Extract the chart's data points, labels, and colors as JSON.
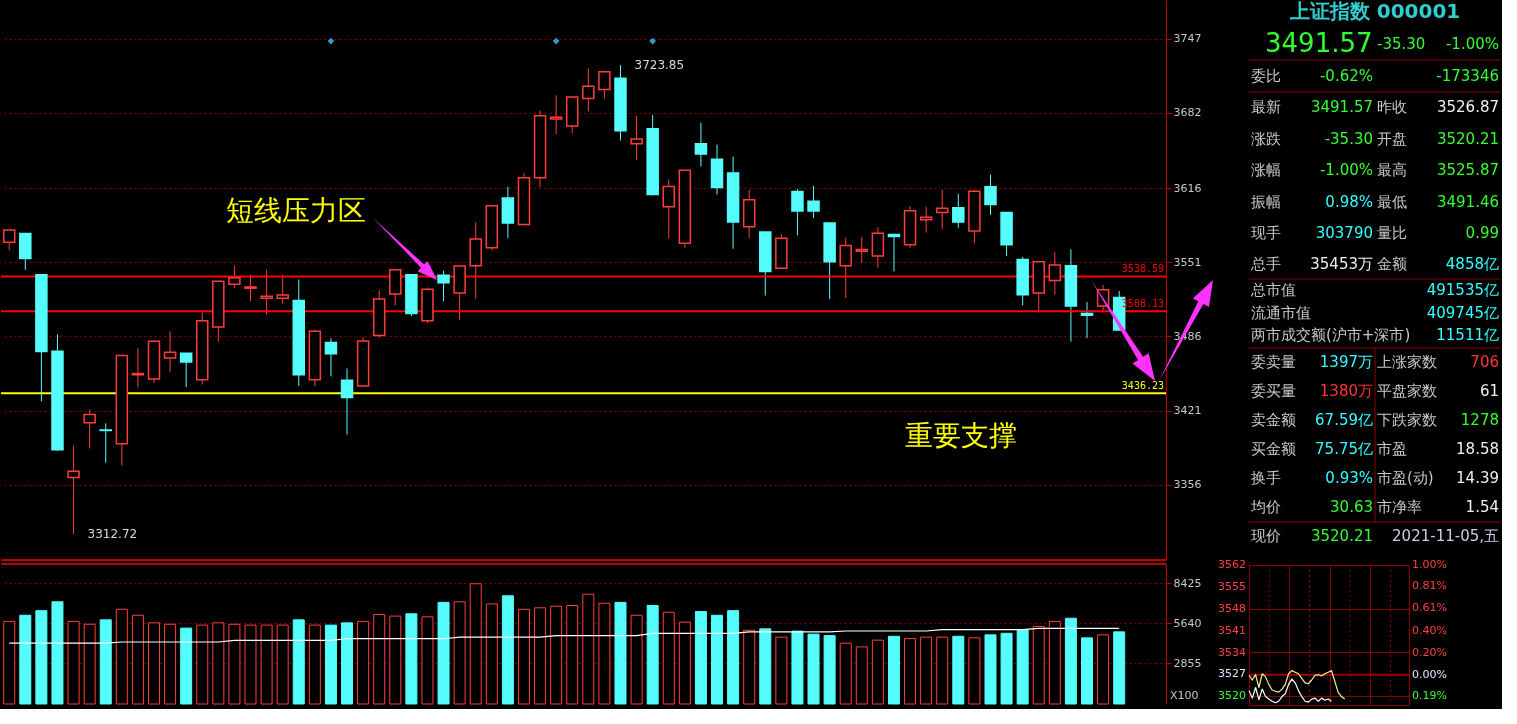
{
  "chart_data": [
    {
      "type": "candlestick",
      "categories": [
        null,
        null,
        null,
        null,
        null,
        null,
        null,
        null,
        null,
        null,
        null,
        null,
        null,
        null,
        null,
        null,
        null,
        null,
        null,
        null,
        null,
        null,
        null,
        null,
        null,
        null,
        null,
        null,
        null,
        null,
        null,
        null,
        null,
        null,
        null,
        null,
        null,
        null,
        null,
        null,
        null,
        null,
        null,
        null,
        null,
        null,
        null,
        null,
        null,
        null,
        null,
        null,
        null,
        null,
        null,
        null,
        null,
        null,
        null,
        null,
        null,
        null,
        null,
        null,
        null,
        null,
        null,
        null,
        null,
        null
      ],
      "ohlc": [
        [
          3568.5,
          3579.3,
          3561.4,
          3579.3
        ],
        [
          3576.2,
          3576.2,
          3544.4,
          3554.4
        ],
        [
          3540.2,
          3540.2,
          3429.1,
          3472.8
        ],
        [
          3473.1,
          3487.8,
          3385.8,
          3386.6
        ],
        [
          3362.3,
          3390.6,
          3312.72,
          3367.9
        ],
        [
          3410.4,
          3421.8,
          3387.8,
          3417.5
        ],
        [
          3404.0,
          3409.9,
          3375.3,
          3403.6
        ],
        [
          3392.0,
          3469.4,
          3373.0,
          3469.4
        ],
        [
          3452.4,
          3475.6,
          3441.6,
          3453.5
        ],
        [
          3448.7,
          3481.8,
          3445.3,
          3481.8
        ],
        [
          3467.1,
          3490.6,
          3454.6,
          3472.2
        ],
        [
          3471.3,
          3471.3,
          3441.6,
          3463.7
        ],
        [
          3448.1,
          3507.0,
          3443.9,
          3499.7
        ],
        [
          3494.3,
          3534.5,
          3481.3,
          3534.5
        ],
        [
          3531.7,
          3548.1,
          3528.3,
          3537.4
        ],
        [
          3528.3,
          3540.2,
          3517.0,
          3529.4
        ],
        [
          3519.5,
          3544.4,
          3504.8,
          3521.2
        ],
        [
          3519.5,
          3540.2,
          3514.7,
          3522.3
        ],
        [
          3517.5,
          3535.9,
          3442.5,
          3452.4
        ],
        [
          3448.1,
          3492.0,
          3442.5,
          3490.6
        ],
        [
          3480.7,
          3484.4,
          3451.0,
          3470.8
        ],
        [
          3447.6,
          3458.0,
          3400.0,
          3432.5
        ],
        [
          3442.5,
          3485.5,
          3442.5,
          3482.1
        ],
        [
          3486.9,
          3526.6,
          3484.9,
          3518.9
        ],
        [
          3523.2,
          3544.4,
          3513.3,
          3544.4
        ],
        [
          3540.2,
          3540.2,
          3503.9,
          3506.2
        ],
        [
          3499.7,
          3528.9,
          3497.7,
          3527.4
        ],
        [
          3539.6,
          3543.6,
          3517.0,
          3533.1
        ],
        [
          3524.0,
          3547.8,
          3500.5,
          3547.8
        ],
        [
          3548.1,
          3586.1,
          3518.9,
          3571.4
        ],
        [
          3563.7,
          3600.5,
          3561.4,
          3600.5
        ],
        [
          3607.3,
          3617.2,
          3572.2,
          3585.5
        ],
        [
          3584.1,
          3629.4,
          3583.3,
          3625.2
        ],
        [
          3625.2,
          3684.1,
          3617.2,
          3679.6
        ],
        [
          3676.7,
          3697.4,
          3663.4,
          3678.2
        ],
        [
          3670.5,
          3696.0,
          3664.3,
          3696.0
        ],
        [
          3694.6,
          3721.0,
          3683.3,
          3705.4
        ],
        [
          3702.5,
          3719.2,
          3694.6,
          3718.1
        ],
        [
          3712.4,
          3723.85,
          3657.8,
          3666.3
        ],
        [
          3654.9,
          3679.6,
          3640.8,
          3659.2
        ],
        [
          3668.2,
          3680.4,
          3609.6,
          3610.5
        ],
        [
          3599.7,
          3623.8,
          3572.2,
          3617.5
        ],
        [
          3567.7,
          3631.7,
          3563.7,
          3631.7
        ],
        [
          3654.9,
          3673.3,
          3635.1,
          3645.9
        ],
        [
          3641.3,
          3654.1,
          3610.5,
          3616.7
        ],
        [
          3629.4,
          3643.6,
          3562.9,
          3586.4
        ],
        [
          3582.1,
          3614.7,
          3572.2,
          3605.9
        ],
        [
          3577.6,
          3577.6,
          3521.8,
          3543.0
        ],
        [
          3545.9,
          3575.6,
          3545.3,
          3572.2
        ],
        [
          3613.0,
          3615.3,
          3574.8,
          3596.0
        ],
        [
          3604.5,
          3618.1,
          3589.8,
          3596.0
        ],
        [
          3585.5,
          3586.1,
          3518.9,
          3551.5
        ],
        [
          3548.1,
          3572.8,
          3519.8,
          3565.7
        ],
        [
          3560.6,
          3573.3,
          3550.7,
          3562.3
        ],
        [
          3556.6,
          3581.8,
          3546.4,
          3576.5
        ],
        [
          3575.3,
          3575.3,
          3543.0,
          3573.6
        ],
        [
          3566.5,
          3600.3,
          3563.7,
          3596.3
        ],
        [
          3588.4,
          3599.7,
          3577.0,
          3590.6
        ],
        [
          3594.6,
          3614.7,
          3579.9,
          3598.3
        ],
        [
          3598.8,
          3611.0,
          3581.3,
          3586.4
        ],
        [
          3578.4,
          3614.7,
          3567.7,
          3613.3
        ],
        [
          3617.2,
          3628.0,
          3592.6,
          3601.7
        ],
        [
          3594.6,
          3594.6,
          3556.6,
          3566.5
        ],
        [
          3553.5,
          3555.8,
          3513.3,
          3522.6
        ],
        [
          3524.0,
          3551.5,
          3507.0,
          3551.5
        ],
        [
          3535.1,
          3560.0,
          3522.6,
          3548.7
        ],
        [
          3548.1,
          3562.3,
          3481.5,
          3512.7
        ],
        [
          3506.2,
          3516.1,
          3484.4,
          3504.5
        ],
        [
          3512.7,
          3531.1,
          3507.0,
          3526.87
        ],
        [
          3520.21,
          3525.87,
          3491.46,
          3491.57
        ]
      ],
      "colors": [
        "#ff3c3c",
        "#54fcfc",
        "#54fcfc",
        "#54fcfc",
        "#ff3c3c",
        "#ff3c3c",
        "#54fcfc",
        "#ff3c3c",
        "#ff3c3c",
        "#ff3c3c",
        "#ff3c3c",
        "#54fcfc",
        "#ff3c3c",
        "#ff3c3c",
        "#ff3c3c",
        "#ff3c3c",
        "#ff3c3c",
        "#ff3c3c",
        "#54fcfc",
        "#ff3c3c",
        "#54fcfc",
        "#54fcfc",
        "#ff3c3c",
        "#ff3c3c",
        "#ff3c3c",
        "#54fcfc",
        "#ff3c3c",
        "#54fcfc",
        "#ff3c3c",
        "#ff3c3c",
        "#ff3c3c",
        "#54fcfc",
        "#ff3c3c",
        "#ff3c3c",
        "#ff3c3c",
        "#ff3c3c",
        "#ff3c3c",
        "#ff3c3c",
        "#54fcfc",
        "#ff3c3c",
        "#54fcfc",
        "#ff3c3c",
        "#ff3c3c",
        "#54fcfc",
        "#54fcfc",
        "#54fcfc",
        "#ff3c3c",
        "#54fcfc",
        "#ff3c3c",
        "#54fcfc",
        "#54fcfc",
        "#54fcfc",
        "#ff3c3c",
        "#ff3c3c",
        "#ff3c3c",
        "#54fcfc",
        "#ff3c3c",
        "#ff3c3c",
        "#ff3c3c",
        "#54fcfc",
        "#ff3c3c",
        "#54fcfc",
        "#54fcfc",
        "#54fcfc",
        "#ff3c3c",
        "#ff3c3c",
        "#54fcfc",
        "#54fcfc",
        "#ff3c3c",
        "#54fcfc"
      ],
      "series": [
        {
          "type": "scatter",
          "marker": "diamond",
          "color": "#3399cc",
          "values": [
            null,
            null,
            null,
            null,
            null,
            null,
            null,
            null,
            null,
            null,
            null,
            null,
            null,
            null,
            null,
            null,
            null,
            null,
            null,
            null,
            3745,
            null,
            null,
            null,
            null,
            null,
            null,
            null,
            null,
            null,
            null,
            null,
            null,
            null,
            3745,
            null,
            null,
            null,
            null,
            null,
            3745,
            null,
            null,
            null,
            null,
            null,
            null,
            null,
            null,
            null,
            null,
            null,
            null,
            null,
            null,
            null,
            null,
            null,
            null,
            null,
            null,
            null,
            null,
            null,
            null,
            null,
            null,
            null,
            null,
            null
          ]
        }
      ],
      "ylim": [
        3290,
        3781
      ],
      "yticks": [
        3356,
        3421,
        3486,
        3551,
        3616,
        3682,
        3747
      ],
      "grid": "y",
      "ref_lines": [
        {
          "axis": "y",
          "value": 3538.59,
          "label": "3538.59",
          "color": "#ff0000"
        },
        {
          "axis": "y",
          "value": 3508.13,
          "label": "3508.13",
          "color": "#ff0000"
        },
        {
          "axis": "y",
          "value": 3436.23,
          "label": "3436.23",
          "color": "#ffff00"
        }
      ],
      "annotations": [
        "短线压力区",
        "重要支撑",
        "3723.85",
        "3312.72"
      ]
    },
    {
      "type": "bar",
      "categories": [
        null,
        null,
        null,
        null,
        null,
        null,
        null,
        null,
        null,
        null,
        null,
        null,
        null,
        null,
        null,
        null,
        null,
        null,
        null,
        null,
        null,
        null,
        null,
        null,
        null,
        null,
        null,
        null,
        null,
        null,
        null,
        null,
        null,
        null,
        null,
        null,
        null,
        null,
        null,
        null,
        null,
        null,
        null,
        null,
        null,
        null,
        null,
        null,
        null,
        null,
        null,
        null,
        null,
        null,
        null,
        null,
        null,
        null,
        null,
        null,
        null,
        null,
        null,
        null,
        null,
        null,
        null,
        null,
        null,
        null
      ],
      "values": [
        5770,
        6200,
        6520,
        7140,
        5770,
        5570,
        5880,
        6620,
        6200,
        5670,
        5570,
        5300,
        5510,
        5670,
        5570,
        5510,
        5510,
        5510,
        5880,
        5510,
        5510,
        5670,
        5770,
        6250,
        6140,
        6300,
        6090,
        7100,
        7140,
        8400,
        6990,
        7560,
        6620,
        6720,
        6830,
        6880,
        7670,
        7040,
        7100,
        6200,
        6880,
        6410,
        5720,
        6460,
        6200,
        6520,
        5150,
        5250,
        4670,
        5090,
        4880,
        4780,
        4250,
        3990,
        4460,
        4730,
        4570,
        4670,
        4670,
        4730,
        4620,
        4830,
        4940,
        5200,
        5410,
        5770,
        5990,
        4620,
        4830,
        5040
      ],
      "colors": [
        "#ff3c3c",
        "#54fcfc",
        "#54fcfc",
        "#54fcfc",
        "#ff3c3c",
        "#ff3c3c",
        "#54fcfc",
        "#ff3c3c",
        "#ff3c3c",
        "#ff3c3c",
        "#ff3c3c",
        "#54fcfc",
        "#ff3c3c",
        "#ff3c3c",
        "#ff3c3c",
        "#ff3c3c",
        "#ff3c3c",
        "#ff3c3c",
        "#54fcfc",
        "#ff3c3c",
        "#54fcfc",
        "#54fcfc",
        "#ff3c3c",
        "#ff3c3c",
        "#ff3c3c",
        "#54fcfc",
        "#ff3c3c",
        "#54fcfc",
        "#ff3c3c",
        "#ff3c3c",
        "#ff3c3c",
        "#54fcfc",
        "#ff3c3c",
        "#ff3c3c",
        "#ff3c3c",
        "#ff3c3c",
        "#ff3c3c",
        "#ff3c3c",
        "#54fcfc",
        "#ff3c3c",
        "#54fcfc",
        "#ff3c3c",
        "#ff3c3c",
        "#54fcfc",
        "#54fcfc",
        "#54fcfc",
        "#ff3c3c",
        "#54fcfc",
        "#ff3c3c",
        "#54fcfc",
        "#54fcfc",
        "#54fcfc",
        "#ff3c3c",
        "#ff3c3c",
        "#ff3c3c",
        "#54fcfc",
        "#ff3c3c",
        "#ff3c3c",
        "#ff3c3c",
        "#54fcfc",
        "#ff3c3c",
        "#54fcfc",
        "#54fcfc",
        "#54fcfc",
        "#ff3c3c",
        "#ff3c3c",
        "#54fcfc",
        "#54fcfc",
        "#ff3c3c",
        "#54fcfc"
      ],
      "series": [
        {
          "type": "line",
          "color": "#ffffff",
          "values": [
            4250,
            4250,
            4250,
            4250,
            4250,
            4250,
            4250,
            4330,
            4330,
            4330,
            4330,
            4330,
            4330,
            4330,
            4450,
            4450,
            4450,
            4450,
            4450,
            4450,
            4450,
            4560,
            4560,
            4560,
            4560,
            4560,
            4560,
            4560,
            4670,
            4670,
            4670,
            4670,
            4670,
            4670,
            4780,
            4780,
            4780,
            4780,
            4780,
            4780,
            4940,
            4940,
            4940,
            4940,
            4940,
            4940,
            5040,
            5040,
            5040,
            5040,
            5040,
            5040,
            5100,
            5100,
            5100,
            5100,
            5100,
            5100,
            5200,
            5200,
            5200,
            5200,
            5200,
            5200,
            5280,
            5280,
            5280,
            5280,
            5280,
            5280
          ]
        }
      ],
      "ylim": [
        0,
        9780
      ],
      "yticks": [
        2855,
        5640,
        8425
      ],
      "grid": "y",
      "annotations": [
        "X100"
      ]
    },
    {
      "type": "other",
      "title": "上证指数 000001",
      "cells": [
        [
          "3491.57",
          null,
          "-35.30",
          "-1.00%"
        ],
        [
          "委比",
          "-0.62%",
          null,
          "-173346"
        ],
        [
          "最新",
          "3491.57",
          "昨收",
          "3526.87"
        ],
        [
          "涨跌",
          "-35.30",
          "开盘",
          "3520.21"
        ],
        [
          "涨幅",
          "-1.00%",
          "最高",
          "3525.87"
        ],
        [
          "振幅",
          "0.98%",
          "最低",
          "3491.46"
        ],
        [
          "现手",
          "303790",
          "量比",
          "0.99"
        ],
        [
          "总手",
          "35453万",
          "金额",
          "4858亿"
        ],
        [
          "总市值",
          null,
          null,
          "491535亿"
        ],
        [
          "流通市值",
          null,
          null,
          "409745亿"
        ],
        [
          "两市成交额(沪市+深市)",
          null,
          null,
          "11511亿"
        ],
        [
          "委卖量",
          "1397万",
          "上涨家数",
          "706"
        ],
        [
          "委买量",
          "1380万",
          "平盘家数",
          "61"
        ],
        [
          "卖金额",
          "67.59亿",
          "下跌家数",
          "1278"
        ],
        [
          "买金额",
          "75.75亿",
          "市盈",
          "18.58"
        ],
        [
          "换手",
          "0.93%",
          "市盈(动)",
          "14.39"
        ],
        [
          "均价",
          "30.63",
          "市净率",
          "1.54"
        ],
        [
          "现价",
          "3520.21",
          null,
          "2021-11-05,五"
        ]
      ],
      "colors": [
        [
          "#33ff33",
          null,
          "#33ff33",
          "#33ff33"
        ],
        [
          "#c8c8c8",
          "#33ff33",
          null,
          "#33ff33"
        ],
        [
          "#c8c8c8",
          "#33ff33",
          "#c8c8c8",
          "#f0f0f0"
        ],
        [
          "#c8c8c8",
          "#33ff33",
          "#c8c8c8",
          "#33ff33"
        ],
        [
          "#c8c8c8",
          "#33ff33",
          "#c8c8c8",
          "#33ff33"
        ],
        [
          "#c8c8c8",
          "#33ffff",
          "#c8c8c8",
          "#33ff33"
        ],
        [
          "#c8c8c8",
          "#33ffff",
          "#c8c8c8",
          "#33ff33"
        ],
        [
          "#c8c8c8",
          "#f0f0f0",
          "#c8c8c8",
          "#33ffff"
        ],
        [
          "#c8c8c8",
          null,
          null,
          "#33ffff"
        ],
        [
          "#c8c8c8",
          null,
          null,
          "#33ffff"
        ],
        [
          "#c8c8c8",
          null,
          null,
          "#33ffff"
        ],
        [
          "#c8c8c8",
          "#33ffff",
          "#c8c8c8",
          "#ff3333"
        ],
        [
          "#c8c8c8",
          "#ff3333",
          "#c8c8c8",
          "#f0f0f0"
        ],
        [
          "#c8c8c8",
          "#33ffff",
          "#c8c8c8",
          "#33ff33"
        ],
        [
          "#c8c8c8",
          "#33ffff",
          "#c8c8c8",
          "#f0f0f0"
        ],
        [
          "#c8c8c8",
          "#33ffff",
          "#c8c8c8",
          "#f0f0f0"
        ],
        [
          "#c8c8c8",
          "#33ff33",
          "#c8c8c8",
          "#f0f0f0"
        ],
        [
          "#c8c8c8",
          "#33ff33",
          null,
          "#c8d0e0"
        ]
      ]
    },
    {
      "type": "line",
      "categories": [
        null,
        null,
        null,
        null,
        null,
        null,
        null,
        null,
        null,
        null,
        null,
        null,
        null,
        null,
        null,
        null,
        null,
        null,
        null,
        null,
        null,
        null,
        null,
        null,
        null,
        null,
        null,
        null,
        null,
        null,
        null,
        null,
        null,
        null,
        null,
        null,
        null,
        null,
        null,
        null,
        null,
        null,
        null,
        null,
        null,
        null,
        null,
        null,
        null
      ],
      "series": [
        {
          "color": "#f0f090",
          "values": [
            3526.7,
            3525.2,
            3526.9,
            3522.8,
            3527.2,
            3526.2,
            3523.8,
            3522.0,
            3521.6,
            3521.3,
            3522.3,
            3523.8,
            3527.2,
            3528.2,
            3527.7,
            3527.2,
            3525.7,
            3524.3,
            3524.0,
            3525.2,
            3526.7,
            3526.9,
            3526.5,
            3527.2,
            3527.7,
            3528.2,
            3524.8,
            3521.3,
            3519.9,
            3519.1,
            null,
            null,
            null,
            null,
            null,
            null,
            null,
            null,
            null,
            null,
            null,
            null,
            null,
            null,
            null,
            null,
            null,
            null,
            null
          ]
        },
        {
          "color": "#ffffff",
          "values": [
            3521.8,
            3519.4,
            3522.8,
            3518.9,
            3522.3,
            3519.9,
            3519.1,
            3518.4,
            3517.9,
            3518.4,
            3519.9,
            3520.8,
            3523.8,
            3525.5,
            3524.3,
            3521.8,
            3519.9,
            3518.4,
            3518.1,
            3519.1,
            3519.4,
            3518.4,
            3519.4,
            3518.7,
            3519.1,
            3518.4,
            null,
            null,
            null,
            null,
            null,
            null,
            null,
            null,
            null,
            null,
            null,
            null,
            null,
            null,
            null,
            null,
            null,
            null,
            null,
            null,
            null,
            null,
            null
          ]
        }
      ],
      "ylim": [
        3517.2,
        3562
      ],
      "yticks": [
        3520,
        3527,
        3534,
        3541,
        3548,
        3555,
        3562
      ],
      "y2lim": [
        -0.274,
        1.0
      ],
      "y2ticks": [
        {
          "value": -0.19,
          "label": "0.19%"
        },
        {
          "value": 0,
          "label": "0.00%"
        },
        {
          "value": 0.2,
          "label": "0.20%"
        },
        {
          "value": 0.4,
          "label": "0.40%"
        },
        {
          "value": 0.61,
          "label": "0.61%"
        },
        {
          "value": 0.81,
          "label": "0.81%"
        },
        {
          "value": 1.0,
          "label": "1.00%"
        }
      ],
      "grid": true,
      "ref_lines": [
        {
          "axis": "y",
          "value": 3526.87,
          "color": "#a00000"
        }
      ]
    }
  ]
}
